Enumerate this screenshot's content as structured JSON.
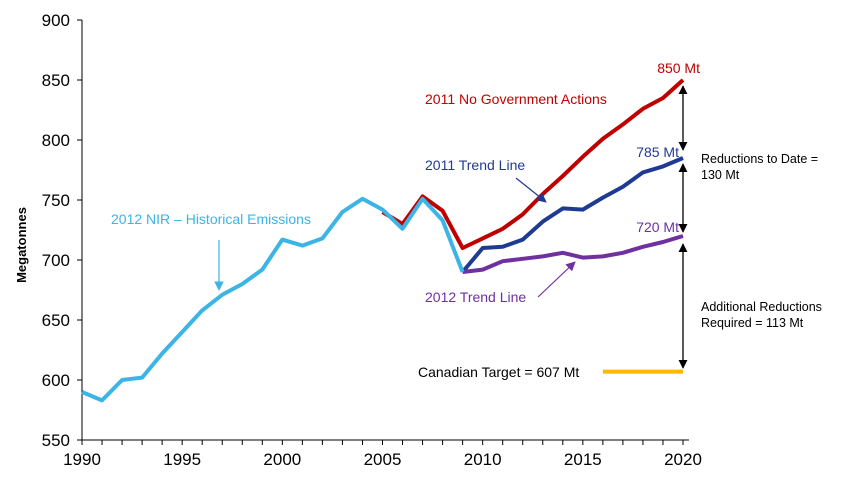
{
  "chart_data": {
    "type": "line",
    "ylabel": "Megatonnes",
    "xlabel": "",
    "ylim": [
      550,
      900
    ],
    "xlim": [
      1990,
      2020
    ],
    "x_ticks": [
      1990,
      1995,
      2000,
      2005,
      2010,
      2015,
      2020
    ],
    "y_ticks": [
      550,
      600,
      650,
      700,
      750,
      800,
      850,
      900
    ],
    "grid": false,
    "series": [
      {
        "name": "2012 NIR – Historical Emissions",
        "color": "#3CB4E5",
        "x": [
          1990,
          1991,
          1992,
          1993,
          1994,
          1995,
          1996,
          1997,
          1998,
          1999,
          2000,
          2001,
          2002,
          2003,
          2004,
          2005,
          2006,
          2007,
          2008,
          2009
        ],
        "values": [
          590,
          583,
          600,
          602,
          622,
          640,
          658,
          671,
          680,
          692,
          717,
          712,
          718,
          740,
          751,
          742,
          726,
          751,
          733,
          690
        ]
      },
      {
        "name": "2011 No Government Actions",
        "color": "#C00000",
        "x": [
          2005,
          2006,
          2007,
          2008,
          2009,
          2010,
          2011,
          2012,
          2013,
          2014,
          2015,
          2016,
          2017,
          2018,
          2019,
          2020
        ],
        "values": [
          740,
          730,
          753,
          741,
          710,
          718,
          726,
          738,
          755,
          770,
          786,
          801,
          813,
          826,
          835,
          850
        ]
      },
      {
        "name": "2011 Trend Line",
        "color": "#1F3A93",
        "x": [
          2009,
          2010,
          2011,
          2012,
          2013,
          2014,
          2015,
          2016,
          2017,
          2018,
          2019,
          2020
        ],
        "values": [
          690,
          710,
          711,
          717,
          732,
          743,
          742,
          752,
          761,
          773,
          778,
          785
        ]
      },
      {
        "name": "2012 Trend Line",
        "color": "#7030A0",
        "x": [
          2009,
          2010,
          2011,
          2012,
          2013,
          2014,
          2015,
          2016,
          2017,
          2018,
          2019,
          2020
        ],
        "values": [
          690,
          692,
          699,
          701,
          703,
          706,
          702,
          703,
          706,
          711,
          715,
          720
        ]
      },
      {
        "name": "Canadian Target = 607 Mt",
        "color": "#FFB800",
        "x": [
          2016,
          2020
        ],
        "values": [
          607,
          607
        ]
      }
    ],
    "end_labels": [
      {
        "text": "850 Mt",
        "color": "#C00000"
      },
      {
        "text": "785 Mt",
        "color": "#1F3A93"
      },
      {
        "text": "720 Mt",
        "color": "#7030A0"
      }
    ],
    "annotations": {
      "historical": {
        "text": "2012 NIR – Historical Emissions",
        "color": "#3CB4E5"
      },
      "no_gov": {
        "text": "2011 No Government Actions",
        "color": "#C00000"
      },
      "trend_2011": {
        "text": "2011 Trend Line",
        "color": "#1F3A93"
      },
      "trend_2012": {
        "text": "2012 Trend Line",
        "color": "#7030A0"
      },
      "target": {
        "text": "Canadian Target = 607 Mt",
        "color": "#000000"
      },
      "reductions_to_date": {
        "line1": "Reductions to Date =",
        "line2": "130 Mt"
      },
      "additional": {
        "line1": "Additional Reductions",
        "line2": "Required = 113 Mt"
      }
    }
  }
}
